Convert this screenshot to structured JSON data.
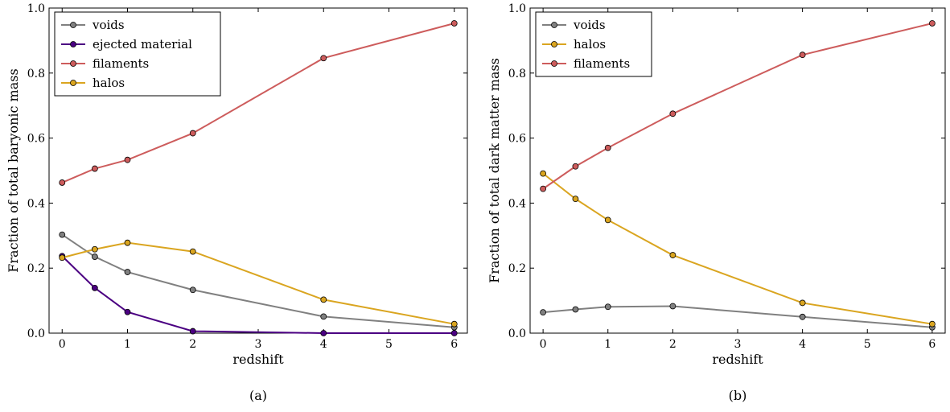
{
  "chart_data": [
    {
      "type": "line",
      "caption": "(a)",
      "xlabel": "redshift",
      "ylabel": "Fraction of total baryonic mass",
      "xlim": [
        -0.2,
        6.2
      ],
      "ylim": [
        0.0,
        1.0
      ],
      "xticks": [
        "0",
        "1",
        "2",
        "3",
        "4",
        "5",
        "6"
      ],
      "yticks": [
        "0.0",
        "0.2",
        "0.4",
        "0.6",
        "0.8",
        "1.0"
      ],
      "grid": false,
      "legend": "top-left",
      "x": [
        0,
        0.5,
        1,
        2,
        4,
        6
      ],
      "series": [
        {
          "name": "voids",
          "color": "#808080",
          "values": [
            0.303,
            0.235,
            0.188,
            0.133,
            0.051,
            0.018
          ]
        },
        {
          "name": "ejected material",
          "color": "#4b0082",
          "values": [
            0.237,
            0.139,
            0.065,
            0.006,
            0.0,
            0.0
          ]
        },
        {
          "name": "filaments",
          "color": "#cd5c5c",
          "values": [
            0.463,
            0.506,
            0.533,
            0.615,
            0.846,
            0.953
          ]
        },
        {
          "name": "halos",
          "color": "#daa520",
          "values": [
            0.232,
            0.258,
            0.278,
            0.251,
            0.103,
            0.028
          ]
        }
      ]
    },
    {
      "type": "line",
      "caption": "(b)",
      "xlabel": "redshift",
      "ylabel": "Fraction of total dark matter mass",
      "xlim": [
        -0.2,
        6.2
      ],
      "ylim": [
        0.0,
        1.0
      ],
      "xticks": [
        "0",
        "1",
        "2",
        "3",
        "4",
        "5",
        "6"
      ],
      "yticks": [
        "0.0",
        "0.2",
        "0.4",
        "0.6",
        "0.8",
        "1.0"
      ],
      "grid": false,
      "legend": "top-left",
      "x": [
        0,
        0.5,
        1,
        2,
        4,
        6
      ],
      "series": [
        {
          "name": "voids",
          "color": "#808080",
          "values": [
            0.064,
            0.073,
            0.081,
            0.083,
            0.05,
            0.018
          ]
        },
        {
          "name": "halos",
          "color": "#daa520",
          "values": [
            0.491,
            0.413,
            0.348,
            0.24,
            0.093,
            0.028
          ]
        },
        {
          "name": "filaments",
          "color": "#cd5c5c",
          "values": [
            0.444,
            0.513,
            0.57,
            0.675,
            0.856,
            0.953
          ]
        }
      ]
    }
  ]
}
